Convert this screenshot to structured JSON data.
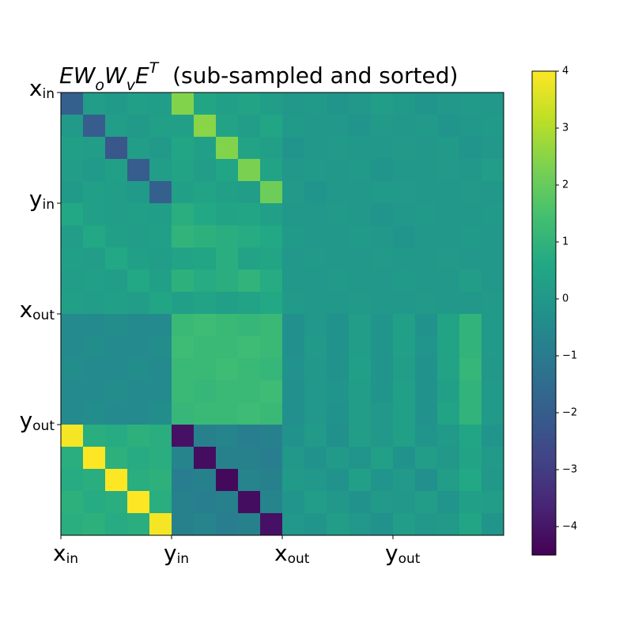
{
  "chart_data": {
    "type": "heatmap",
    "title_parts": [
      {
        "text": "EW",
        "math": true
      },
      {
        "text": "o",
        "math": true,
        "script": "sub"
      },
      {
        "text": "W",
        "math": true
      },
      {
        "text": "v",
        "math": true,
        "script": "sub"
      },
      {
        "text": "E",
        "math": true
      },
      {
        "text": "T",
        "math": true,
        "script": "super"
      },
      {
        "text": "  (sub-sampled and sorted)"
      }
    ],
    "colormap": "viridis",
    "clim": [
      -4.5,
      4
    ],
    "cticks": [
      {
        "value": -4,
        "label": "−4"
      },
      {
        "value": -3,
        "label": "−3"
      },
      {
        "value": -2,
        "label": "−2"
      },
      {
        "value": -1,
        "label": "−1"
      },
      0,
      1,
      2,
      3,
      4
    ],
    "xlim": [
      0,
      20
    ],
    "ylim": [
      0,
      20
    ],
    "xticks": [
      {
        "value": 0,
        "label": "x",
        "subscript": "in"
      },
      {
        "value": 5,
        "label": "y",
        "subscript": "in"
      },
      {
        "value": 10,
        "label": "x",
        "subscript": "out"
      },
      {
        "value": 15,
        "label": "y",
        "subscript": "out"
      }
    ],
    "yticks": [
      {
        "value": 0,
        "label": "x",
        "subscript": "in"
      },
      {
        "value": 5,
        "label": "y",
        "subscript": "in"
      },
      {
        "value": 10,
        "label": "x",
        "subscript": "out"
      },
      {
        "value": 15,
        "label": "y",
        "subscript": "out"
      }
    ],
    "z": [
      [
        -1.9,
        0.2,
        0.1,
        0.3,
        0.2,
        2.4,
        0.5,
        0.3,
        0.4,
        0.2,
        0.0,
        0.1,
        -0.1,
        0.0,
        0.2,
        0.1,
        -0.1,
        0.0,
        0.1,
        0.0
      ],
      [
        0.1,
        -2.0,
        0.2,
        0.1,
        0.3,
        0.3,
        2.5,
        0.4,
        0.2,
        0.5,
        0.1,
        0.0,
        0.0,
        -0.1,
        0.1,
        0.0,
        0.1,
        -0.1,
        0.0,
        0.1
      ],
      [
        0.3,
        0.2,
        -2.2,
        0.2,
        0.1,
        0.5,
        0.3,
        2.4,
        0.4,
        0.3,
        -0.1,
        0.0,
        0.1,
        0.0,
        0.0,
        0.1,
        0.0,
        0.1,
        -0.1,
        0.0
      ],
      [
        0.2,
        0.1,
        0.3,
        -2.0,
        0.2,
        0.4,
        0.2,
        0.5,
        2.3,
        0.4,
        0.0,
        0.1,
        0.0,
        0.1,
        -0.1,
        0.0,
        0.0,
        0.1,
        0.0,
        0.2
      ],
      [
        0.1,
        0.3,
        0.2,
        0.1,
        -1.9,
        0.3,
        0.4,
        0.3,
        0.2,
        2.1,
        0.1,
        -0.1,
        0.0,
        0.0,
        0.1,
        0.1,
        0.0,
        0.0,
        0.1,
        0.0
      ],
      [
        0.6,
        0.3,
        0.2,
        0.3,
        0.2,
        0.8,
        0.6,
        0.4,
        0.5,
        0.3,
        0.0,
        0.0,
        0.1,
        0.0,
        -0.1,
        0.0,
        0.1,
        0.0,
        0.0,
        0.1
      ],
      [
        0.2,
        0.6,
        0.3,
        0.2,
        0.3,
        1.0,
        0.9,
        0.8,
        0.7,
        0.6,
        0.1,
        0.0,
        0.0,
        0.1,
        0.0,
        -0.1,
        0.0,
        0.0,
        0.1,
        0.0
      ],
      [
        0.3,
        0.2,
        0.6,
        0.3,
        0.2,
        0.4,
        0.5,
        0.8,
        0.4,
        0.5,
        0.0,
        0.1,
        0.0,
        0.0,
        0.1,
        0.0,
        0.0,
        0.1,
        0.0,
        0.0
      ],
      [
        0.2,
        0.3,
        0.2,
        0.6,
        0.3,
        0.9,
        0.7,
        0.8,
        1.0,
        0.7,
        0.0,
        0.0,
        0.1,
        0.0,
        0.0,
        0.1,
        0.0,
        0.0,
        0.2,
        0.0
      ],
      [
        0.3,
        0.2,
        0.3,
        0.2,
        0.5,
        0.3,
        0.4,
        0.3,
        0.4,
        0.6,
        0.1,
        0.0,
        0.0,
        0.1,
        0.0,
        0.0,
        0.1,
        0.0,
        0.0,
        0.1
      ],
      [
        -0.5,
        -0.5,
        -0.4,
        -0.5,
        -0.5,
        1.2,
        1.3,
        1.2,
        1.1,
        1.2,
        -0.3,
        0.0,
        -0.2,
        0.2,
        -0.1,
        0.3,
        -0.2,
        0.4,
        1.0,
        0.1
      ],
      [
        -0.5,
        -0.4,
        -0.5,
        -0.5,
        -0.4,
        1.3,
        1.2,
        1.2,
        1.3,
        1.2,
        -0.3,
        0.1,
        -0.2,
        0.2,
        -0.1,
        0.3,
        -0.1,
        0.4,
        1.0,
        0.1
      ],
      [
        -0.4,
        -0.5,
        -0.5,
        -0.4,
        -0.5,
        1.2,
        1.2,
        1.3,
        1.2,
        1.1,
        -0.2,
        0.0,
        -0.2,
        0.3,
        -0.1,
        0.2,
        -0.2,
        0.4,
        1.1,
        0.0
      ],
      [
        -0.5,
        -0.5,
        -0.4,
        -0.5,
        -0.5,
        1.2,
        1.1,
        1.2,
        1.2,
        1.3,
        -0.3,
        0.0,
        -0.1,
        0.2,
        -0.1,
        0.3,
        -0.2,
        0.3,
        1.0,
        0.1
      ],
      [
        -0.5,
        -0.4,
        -0.5,
        -0.5,
        -0.4,
        1.1,
        1.2,
        1.2,
        1.3,
        1.2,
        -0.3,
        0.0,
        -0.2,
        0.2,
        0.0,
        0.3,
        -0.2,
        0.4,
        1.0,
        0.1
      ],
      [
        3.9,
        0.8,
        0.7,
        0.9,
        0.8,
        -4.1,
        -0.8,
        -0.7,
        -0.9,
        -0.8,
        -0.2,
        0.1,
        -0.3,
        0.2,
        0.0,
        0.3,
        -0.1,
        0.1,
        0.5,
        -0.1
      ],
      [
        0.8,
        4.0,
        0.9,
        0.7,
        0.8,
        -0.7,
        -4.2,
        -0.8,
        -0.8,
        -0.9,
        0.0,
        -0.2,
        0.1,
        -0.1,
        0.3,
        -0.2,
        0.2,
        0.0,
        0.4,
        0.1
      ],
      [
        0.7,
        0.8,
        4.0,
        0.8,
        0.9,
        -0.9,
        -0.8,
        -4.3,
        -0.7,
        -0.8,
        0.1,
        0.0,
        -0.2,
        0.3,
        -0.1,
        0.1,
        -0.3,
        0.2,
        0.6,
        0.0
      ],
      [
        0.9,
        0.7,
        0.8,
        4.0,
        0.8,
        -0.8,
        -0.9,
        -0.8,
        -4.2,
        -0.7,
        -0.1,
        0.2,
        0.0,
        -0.2,
        0.1,
        0.0,
        0.2,
        -0.1,
        0.3,
        0.2
      ],
      [
        0.8,
        0.9,
        0.7,
        0.8,
        3.9,
        -0.8,
        -0.7,
        -0.9,
        -0.8,
        -4.1,
        0.0,
        -0.1,
        0.2,
        0.0,
        -0.2,
        0.2,
        0.0,
        0.1,
        0.5,
        -0.1
      ]
    ]
  }
}
